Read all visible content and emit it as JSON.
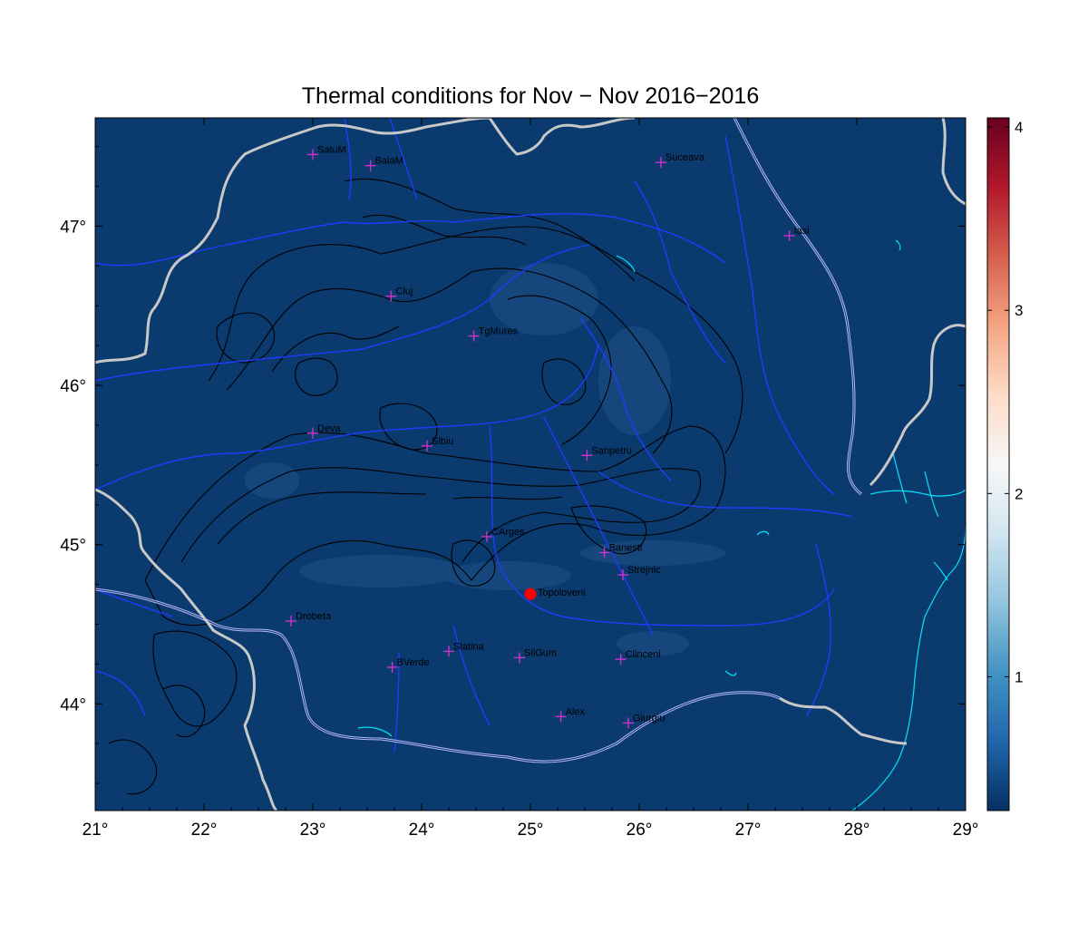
{
  "title": "Thermal conditions for Nov − Nov  2016−2016",
  "map": {
    "lon_range": [
      21,
      29
    ],
    "lat_range": [
      43.33,
      47.68
    ],
    "background_color": "#0b3a6e",
    "x_ticks": [
      "21°",
      "22°",
      "23°",
      "24°",
      "25°",
      "26°",
      "27°",
      "28°",
      "29°"
    ],
    "x_tick_values": [
      21,
      22,
      23,
      24,
      25,
      26,
      27,
      28,
      29
    ],
    "y_ticks": [
      "44°",
      "45°",
      "46°",
      "47°"
    ],
    "y_tick_values": [
      44,
      45,
      46,
      47
    ],
    "colors": {
      "border": "#c8c8c8",
      "river": "#1e3cff",
      "danube": "#b8b8ff",
      "coast": "#00e5ff",
      "contour": "#000000",
      "marker": "#cc33cc",
      "highlight": "#ff0000"
    }
  },
  "cities": [
    {
      "name": "SatuM",
      "lon": 23.0,
      "lat": 47.45
    },
    {
      "name": "BaiaM",
      "lon": 23.53,
      "lat": 47.38
    },
    {
      "name": "Suceava",
      "lon": 26.2,
      "lat": 47.4
    },
    {
      "name": "Iasi",
      "lon": 27.38,
      "lat": 46.94
    },
    {
      "name": "Cluj",
      "lon": 23.72,
      "lat": 46.56
    },
    {
      "name": "TgMures",
      "lon": 24.48,
      "lat": 46.31
    },
    {
      "name": "Deva",
      "lon": 23.0,
      "lat": 45.7
    },
    {
      "name": "Sibiu",
      "lon": 24.05,
      "lat": 45.62
    },
    {
      "name": "Sanpetru",
      "lon": 25.52,
      "lat": 45.56
    },
    {
      "name": "CArges",
      "lon": 24.6,
      "lat": 45.05
    },
    {
      "name": "Banesti",
      "lon": 25.68,
      "lat": 44.95
    },
    {
      "name": "Strejnic",
      "lon": 25.85,
      "lat": 44.81
    },
    {
      "name": "Drobeta",
      "lon": 22.8,
      "lat": 44.52
    },
    {
      "name": "Slatina",
      "lon": 24.25,
      "lat": 44.33
    },
    {
      "name": "SilGum",
      "lon": 24.9,
      "lat": 44.29
    },
    {
      "name": "Clinceni",
      "lon": 25.83,
      "lat": 44.28
    },
    {
      "name": "BVerde",
      "lon": 23.73,
      "lat": 44.23
    },
    {
      "name": "Alex",
      "lon": 25.28,
      "lat": 43.92
    },
    {
      "name": "Giurgiu",
      "lon": 25.9,
      "lat": 43.88
    }
  ],
  "highlight": {
    "name": "Topoloveni",
    "lon": 25.0,
    "lat": 44.69
  },
  "colorbar": {
    "min": 0.27,
    "max": 4.05,
    "ticks": [
      "1",
      "2",
      "3",
      "4"
    ],
    "tick_values": [
      1,
      2,
      3,
      4
    ],
    "colormap": [
      "#053061",
      "#2166ac",
      "#4393c3",
      "#92c5de",
      "#d1e5f0",
      "#f7f7f7",
      "#fddbc7",
      "#f4a582",
      "#d6604d",
      "#b2182b",
      "#67001f"
    ]
  }
}
